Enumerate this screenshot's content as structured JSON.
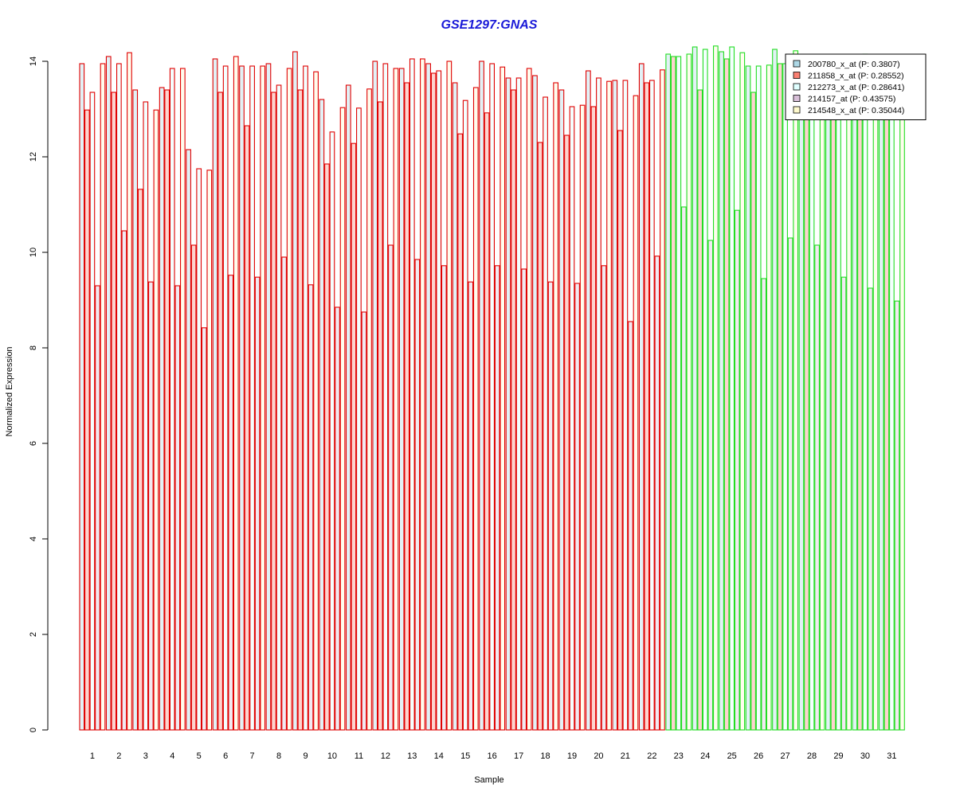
{
  "chart_data": {
    "type": "bar",
    "title": "GSE1297:GNAS",
    "xlabel": "Sample",
    "ylabel": "Normalized Expression",
    "ylim": [
      0,
      14
    ],
    "yticks": [
      "0",
      "2",
      "4",
      "6",
      "8",
      "10",
      "12",
      "14"
    ],
    "categories": [
      "1",
      "2",
      "3",
      "4",
      "5",
      "6",
      "7",
      "8",
      "9",
      "10",
      "11",
      "12",
      "13",
      "14",
      "15",
      "16",
      "17",
      "18",
      "19",
      "20",
      "21",
      "22",
      "23",
      "24",
      "25",
      "26",
      "27",
      "28",
      "29",
      "30",
      "31"
    ],
    "group_colors": [
      "#e00000",
      "#e00000",
      "#e00000",
      "#e00000",
      "#e00000",
      "#e00000",
      "#e00000",
      "#e00000",
      "#e00000",
      "#e00000",
      "#e00000",
      "#e00000",
      "#e00000",
      "#e00000",
      "#e00000",
      "#e00000",
      "#e00000",
      "#e00000",
      "#e00000",
      "#e00000",
      "#e00000",
      "#e00000",
      "#22dd22",
      "#22dd22",
      "#22dd22",
      "#22dd22",
      "#22dd22",
      "#22dd22",
      "#22dd22",
      "#22dd22",
      "#22dd22"
    ],
    "series": [
      {
        "name": "200780_x_at (P: 0.3807)",
        "fill": "#add8e6",
        "values": [
          13.95,
          14.1,
          13.4,
          13.45,
          12.15,
          14.05,
          13.9,
          13.95,
          14.2,
          13.2,
          13.5,
          14.0,
          13.85,
          13.95,
          13.55,
          14.0,
          13.65,
          13.7,
          13.4,
          13.8,
          13.6,
          13.95,
          14.15,
          14.3,
          14.2,
          13.9,
          14.25,
          14.0,
          13.9,
          14.0,
          13.85
        ]
      },
      {
        "name": "211858_x_at (P: 0.28552)",
        "fill": "#fa8072",
        "values": [
          12.98,
          13.35,
          11.32,
          13.4,
          10.15,
          13.35,
          12.65,
          13.35,
          13.4,
          11.85,
          12.28,
          13.15,
          13.55,
          13.75,
          12.48,
          12.92,
          13.4,
          12.3,
          12.45,
          13.05,
          12.55,
          13.55,
          14.1,
          13.4,
          14.05,
          13.35,
          13.95,
          13.6,
          13.6,
          13.7,
          13.35
        ]
      },
      {
        "name": "212273_x_at (P: 0.28641)",
        "fill": "#e0ffff",
        "values": [
          13.35,
          13.95,
          13.15,
          13.85,
          11.75,
          13.9,
          13.9,
          13.5,
          13.9,
          12.52,
          13.02,
          13.95,
          14.05,
          13.8,
          13.18,
          13.95,
          13.65,
          13.25,
          13.05,
          13.65,
          13.6,
          13.6,
          14.1,
          14.25,
          14.3,
          13.9,
          13.95,
          14.1,
          14.0,
          14.15,
          13.95
        ]
      },
      {
        "name": "214157_at (P: 0.43575)",
        "fill": "#d8bfd8",
        "values": [
          9.3,
          10.45,
          9.38,
          9.3,
          8.42,
          9.52,
          9.48,
          9.9,
          9.32,
          8.85,
          8.75,
          10.15,
          9.85,
          9.72,
          9.38,
          9.72,
          9.65,
          9.38,
          9.35,
          9.72,
          8.55,
          9.92,
          10.95,
          10.25,
          10.88,
          9.45,
          10.3,
          10.15,
          9.48,
          9.25,
          8.98
        ]
      },
      {
        "name": "214548_x_at (P: 0.35044)",
        "fill": "#fffacd",
        "values": [
          13.95,
          14.18,
          12.98,
          13.85,
          11.72,
          14.1,
          13.9,
          13.85,
          13.78,
          13.03,
          13.42,
          13.85,
          14.05,
          14.0,
          13.45,
          13.88,
          13.85,
          13.55,
          13.08,
          13.58,
          13.28,
          13.82,
          14.15,
          14.32,
          14.18,
          13.92,
          14.22,
          14.1,
          13.95,
          14.05,
          13.92
        ]
      }
    ]
  }
}
